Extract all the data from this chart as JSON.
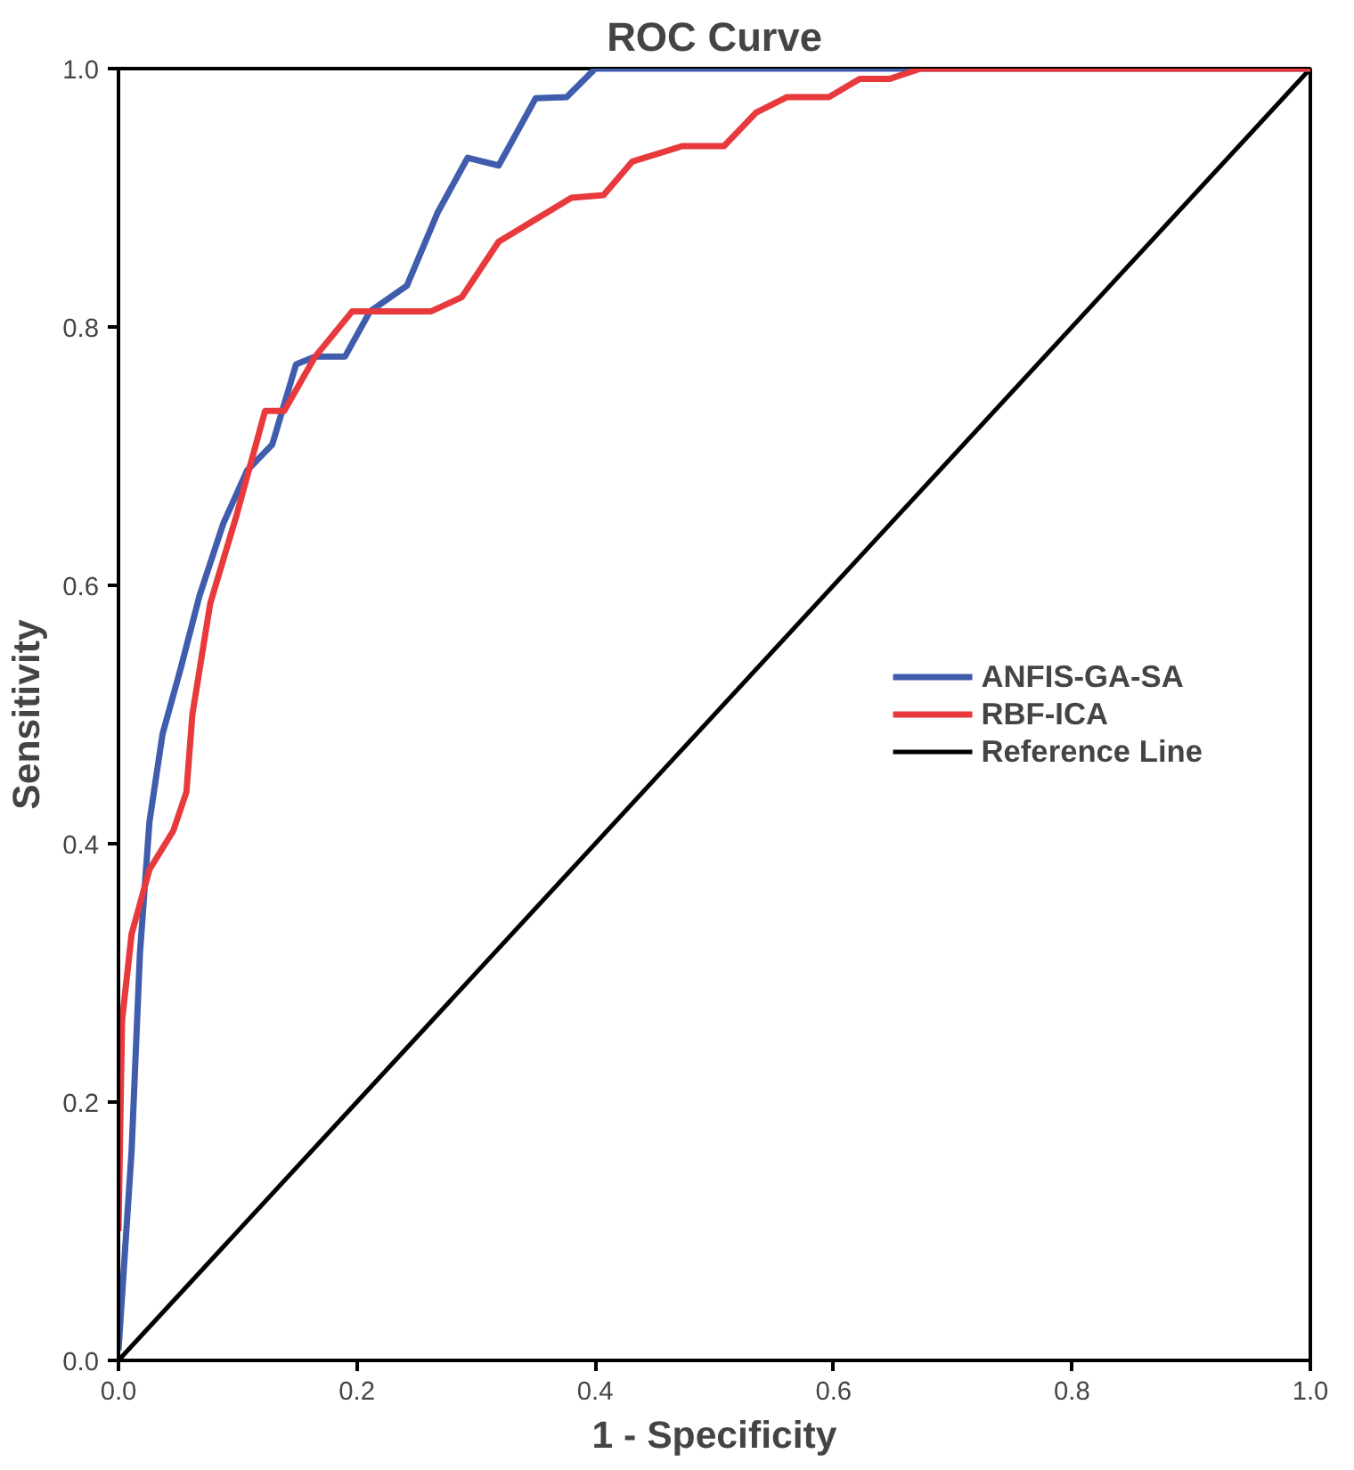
{
  "chart_data": {
    "type": "line",
    "title": "ROC Curve",
    "xlabel": "1 - Specificity",
    "ylabel": "Sensitivity",
    "xlim": [
      0,
      1
    ],
    "ylim": [
      0,
      1
    ],
    "xticks": [
      {
        "value": 0,
        "label": "0.0"
      },
      {
        "value": 0.2,
        "label": "0.2"
      },
      {
        "value": 0.4,
        "label": "0.4"
      },
      {
        "value": 0.6,
        "label": "0.6"
      },
      {
        "value": 0.8,
        "label": "0.8"
      },
      {
        "value": 1,
        "label": "1.0"
      }
    ],
    "yticks": [
      {
        "value": 0,
        "label": "0.0"
      },
      {
        "value": 0.2,
        "label": "0.2"
      },
      {
        "value": 0.4,
        "label": "0.4"
      },
      {
        "value": 0.6,
        "label": "0.6"
      },
      {
        "value": 0.8,
        "label": "0.8"
      },
      {
        "value": 1,
        "label": "1.0"
      }
    ],
    "grid": false,
    "legend": "right",
    "marker": "none",
    "line_style": "solid",
    "series": [
      {
        "name": "ANFIS-GA-SA",
        "color": "#3f5cad",
        "x": [
          0,
          0.011,
          0.018,
          0.026,
          0.037,
          0.052,
          0.068,
          0.088,
          0.108,
          0.129,
          0.149,
          0.165,
          0.19,
          0.211,
          0.242,
          0.268,
          0.293,
          0.319,
          0.35,
          0.376,
          0.4,
          1
        ],
        "values": [
          0.008,
          0.162,
          0.315,
          0.417,
          0.485,
          0.535,
          0.592,
          0.648,
          0.689,
          0.709,
          0.771,
          0.777,
          0.777,
          0.812,
          0.832,
          0.889,
          0.931,
          0.925,
          0.977,
          0.978,
          1,
          1
        ]
      },
      {
        "name": "RBF-ICA",
        "color": "#e8393c",
        "x": [
          0,
          0.003,
          0.011,
          0.026,
          0.046,
          0.057,
          0.062,
          0.077,
          0.099,
          0.123,
          0.139,
          0.165,
          0.196,
          0.262,
          0.288,
          0.319,
          0.38,
          0.407,
          0.431,
          0.473,
          0.508,
          0.535,
          0.561,
          0.596,
          0.622,
          0.647,
          0.673,
          1
        ],
        "values": [
          0.1,
          0.263,
          0.33,
          0.38,
          0.41,
          0.44,
          0.5,
          0.586,
          0.654,
          0.735,
          0.735,
          0.777,
          0.812,
          0.812,
          0.823,
          0.866,
          0.9,
          0.902,
          0.928,
          0.94,
          0.94,
          0.966,
          0.978,
          0.978,
          0.992,
          0.992,
          1,
          1
        ]
      },
      {
        "name": "Reference Line",
        "color": "#000000",
        "x": [
          0,
          1
        ],
        "values": [
          0,
          1
        ]
      }
    ]
  }
}
